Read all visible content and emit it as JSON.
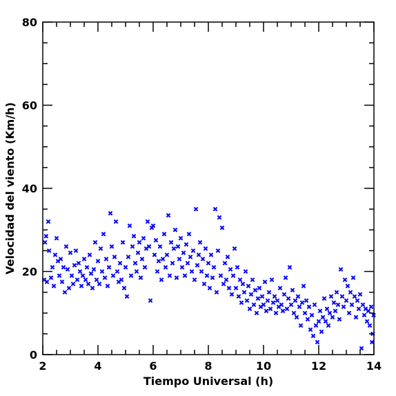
{
  "chart_data": {
    "type": "scatter",
    "xlabel": "Tiempo Universal (h)",
    "ylabel": "Velocidad del viento (Km/h)",
    "xlim": [
      2,
      14
    ],
    "ylim": [
      0,
      80
    ],
    "x_major_ticks": [
      2,
      4,
      6,
      8,
      10,
      12,
      14
    ],
    "y_major_ticks": [
      0,
      20,
      40,
      60,
      80
    ],
    "x_tick_labels": [
      "2",
      "4",
      "6",
      "8",
      "10",
      "12",
      "14"
    ],
    "y_tick_labels": [
      "0",
      "20",
      "40",
      "60",
      "80"
    ],
    "grid": false,
    "marker": "x",
    "color": "#0000ff",
    "series": [
      {
        "points": [
          [
            2.05,
            18
          ],
          [
            2.08,
            27
          ],
          [
            2.12,
            28.5
          ],
          [
            2.15,
            17.5
          ],
          [
            2.2,
            32
          ],
          [
            2.23,
            25
          ],
          [
            2.3,
            18.5
          ],
          [
            2.35,
            21
          ],
          [
            2.4,
            16.5
          ],
          [
            2.45,
            24
          ],
          [
            2.5,
            28
          ],
          [
            2.55,
            22.5
          ],
          [
            2.6,
            19
          ],
          [
            2.65,
            23
          ],
          [
            2.7,
            17.5
          ],
          [
            2.75,
            21
          ],
          [
            2.8,
            15
          ],
          [
            2.85,
            26
          ],
          [
            2.9,
            20.5
          ],
          [
            2.95,
            16
          ],
          [
            3.0,
            24.5
          ],
          [
            3.05,
            19
          ],
          [
            3.1,
            17
          ],
          [
            3.15,
            21.5
          ],
          [
            3.2,
            25
          ],
          [
            3.25,
            18
          ],
          [
            3.3,
            22
          ],
          [
            3.35,
            20
          ],
          [
            3.4,
            16.5
          ],
          [
            3.45,
            19
          ],
          [
            3.5,
            23
          ],
          [
            3.55,
            18
          ],
          [
            3.6,
            21
          ],
          [
            3.65,
            17
          ],
          [
            3.7,
            24
          ],
          [
            3.75,
            19.5
          ],
          [
            3.8,
            16
          ],
          [
            3.85,
            20.5
          ],
          [
            3.9,
            27
          ],
          [
            3.95,
            18
          ],
          [
            4.0,
            22.5
          ],
          [
            4.05,
            17
          ],
          [
            4.1,
            25.5
          ],
          [
            4.15,
            20
          ],
          [
            4.2,
            29
          ],
          [
            4.25,
            18.5
          ],
          [
            4.3,
            23
          ],
          [
            4.35,
            16.5
          ],
          [
            4.4,
            21
          ],
          [
            4.45,
            34
          ],
          [
            4.5,
            26
          ],
          [
            4.55,
            19
          ],
          [
            4.6,
            23.5
          ],
          [
            4.65,
            32
          ],
          [
            4.7,
            20
          ],
          [
            4.75,
            17.5
          ],
          [
            4.8,
            22
          ],
          [
            4.85,
            18
          ],
          [
            4.9,
            27
          ],
          [
            4.95,
            16
          ],
          [
            5.0,
            21
          ],
          [
            5.05,
            14
          ],
          [
            5.1,
            23.5
          ],
          [
            5.15,
            31
          ],
          [
            5.2,
            19
          ],
          [
            5.25,
            26
          ],
          [
            5.3,
            28.5
          ],
          [
            5.35,
            22
          ],
          [
            5.4,
            20
          ],
          [
            5.45,
            24.5
          ],
          [
            5.5,
            27
          ],
          [
            5.55,
            18.5
          ],
          [
            5.6,
            23
          ],
          [
            5.65,
            28
          ],
          [
            5.7,
            21
          ],
          [
            5.75,
            25.5
          ],
          [
            5.8,
            32
          ],
          [
            5.85,
            26
          ],
          [
            5.9,
            13
          ],
          [
            5.95,
            30.5
          ],
          [
            6.0,
            31
          ],
          [
            6.05,
            24
          ],
          [
            6.1,
            27.5
          ],
          [
            6.15,
            20
          ],
          [
            6.2,
            22.5
          ],
          [
            6.25,
            26
          ],
          [
            6.3,
            18
          ],
          [
            6.35,
            23
          ],
          [
            6.4,
            29
          ],
          [
            6.45,
            21
          ],
          [
            6.5,
            24
          ],
          [
            6.55,
            33.5
          ],
          [
            6.6,
            19
          ],
          [
            6.65,
            27
          ],
          [
            6.7,
            22
          ],
          [
            6.75,
            25.5
          ],
          [
            6.8,
            30
          ],
          [
            6.85,
            18.5
          ],
          [
            6.9,
            26
          ],
          [
            6.95,
            23
          ],
          [
            7.0,
            28
          ],
          [
            7.05,
            21
          ],
          [
            7.1,
            24.5
          ],
          [
            7.15,
            19
          ],
          [
            7.2,
            26.5
          ],
          [
            7.25,
            22
          ],
          [
            7.3,
            29
          ],
          [
            7.35,
            23.5
          ],
          [
            7.4,
            20
          ],
          [
            7.45,
            25
          ],
          [
            7.5,
            18
          ],
          [
            7.55,
            35
          ],
          [
            7.6,
            21.5
          ],
          [
            7.65,
            24
          ],
          [
            7.7,
            27
          ],
          [
            7.75,
            20
          ],
          [
            7.8,
            23
          ],
          [
            7.85,
            17
          ],
          [
            7.9,
            25.5
          ],
          [
            7.95,
            19
          ],
          [
            8.0,
            22
          ],
          [
            8.05,
            16
          ],
          [
            8.1,
            24
          ],
          [
            8.15,
            18.5
          ],
          [
            8.2,
            21
          ],
          [
            8.25,
            35
          ],
          [
            8.3,
            15
          ],
          [
            8.35,
            25
          ],
          [
            8.4,
            33
          ],
          [
            8.45,
            19
          ],
          [
            8.5,
            30.5
          ],
          [
            8.55,
            17
          ],
          [
            8.6,
            22
          ],
          [
            8.65,
            18
          ],
          [
            8.7,
            23.5
          ],
          [
            8.75,
            16
          ],
          [
            8.8,
            20.5
          ],
          [
            8.85,
            14.5
          ],
          [
            8.9,
            19
          ],
          [
            8.95,
            25.5
          ],
          [
            9.0,
            16
          ],
          [
            9.05,
            21
          ],
          [
            9.1,
            14
          ],
          [
            9.15,
            18
          ],
          [
            9.2,
            12.5
          ],
          [
            9.25,
            17
          ],
          [
            9.3,
            15
          ],
          [
            9.35,
            20
          ],
          [
            9.4,
            13
          ],
          [
            9.45,
            16.5
          ],
          [
            9.5,
            11
          ],
          [
            9.55,
            14.5
          ],
          [
            9.6,
            18
          ],
          [
            9.65,
            12
          ],
          [
            9.7,
            15.5
          ],
          [
            9.75,
            10
          ],
          [
            9.8,
            13.5
          ],
          [
            9.85,
            16
          ],
          [
            9.9,
            11.5
          ],
          [
            9.95,
            14
          ],
          [
            10.0,
            12
          ],
          [
            10.05,
            17.5
          ],
          [
            10.1,
            10.5
          ],
          [
            10.15,
            13
          ],
          [
            10.2,
            15
          ],
          [
            10.25,
            11
          ],
          [
            10.3,
            18
          ],
          [
            10.35,
            12.5
          ],
          [
            10.4,
            14
          ],
          [
            10.45,
            10
          ],
          [
            10.5,
            13
          ],
          [
            10.55,
            11.5
          ],
          [
            10.6,
            16
          ],
          [
            10.65,
            12
          ],
          [
            10.7,
            10.5
          ],
          [
            10.75,
            14.5
          ],
          [
            10.8,
            18.5
          ],
          [
            10.85,
            11
          ],
          [
            10.9,
            13.5
          ],
          [
            10.95,
            21
          ],
          [
            11.0,
            12
          ],
          [
            11.05,
            15.5
          ],
          [
            11.1,
            10
          ],
          [
            11.15,
            13
          ],
          [
            11.2,
            9
          ],
          [
            11.25,
            14
          ],
          [
            11.3,
            11.5
          ],
          [
            11.35,
            7
          ],
          [
            11.4,
            12.5
          ],
          [
            11.45,
            16.5
          ],
          [
            11.5,
            10
          ],
          [
            11.55,
            13
          ],
          [
            11.6,
            8.5
          ],
          [
            11.65,
            11.5
          ],
          [
            11.7,
            6
          ],
          [
            11.75,
            9.5
          ],
          [
            11.8,
            4.5
          ],
          [
            11.85,
            12
          ],
          [
            11.9,
            7
          ],
          [
            11.95,
            3
          ],
          [
            12.0,
            8
          ],
          [
            12.05,
            10.5
          ],
          [
            12.1,
            5.5
          ],
          [
            12.15,
            9
          ],
          [
            12.2,
            13.5
          ],
          [
            12.25,
            8
          ],
          [
            12.3,
            11
          ],
          [
            12.35,
            7
          ],
          [
            12.4,
            10
          ],
          [
            12.45,
            14
          ],
          [
            12.5,
            9
          ],
          [
            12.55,
            12.5
          ],
          [
            12.6,
            10.5
          ],
          [
            12.65,
            15
          ],
          [
            12.7,
            12
          ],
          [
            12.75,
            8.5
          ],
          [
            12.8,
            20.5
          ],
          [
            12.85,
            14
          ],
          [
            12.9,
            11.5
          ],
          [
            12.95,
            18
          ],
          [
            13.0,
            13
          ],
          [
            13.05,
            16.5
          ],
          [
            13.1,
            10
          ],
          [
            13.15,
            15
          ],
          [
            13.2,
            12
          ],
          [
            13.25,
            18.5
          ],
          [
            13.3,
            14
          ],
          [
            13.35,
            9
          ],
          [
            13.4,
            13
          ],
          [
            13.45,
            11
          ],
          [
            13.5,
            14.5
          ],
          [
            13.55,
            1.5
          ],
          [
            13.6,
            12
          ],
          [
            13.65,
            9.5
          ],
          [
            13.7,
            11
          ],
          [
            13.75,
            8
          ],
          [
            13.8,
            10.5
          ],
          [
            13.85,
            7
          ],
          [
            13.9,
            11.5
          ],
          [
            13.93,
            3
          ],
          [
            13.96,
            5
          ],
          [
            13.99,
            9.5
          ]
        ]
      }
    ]
  }
}
